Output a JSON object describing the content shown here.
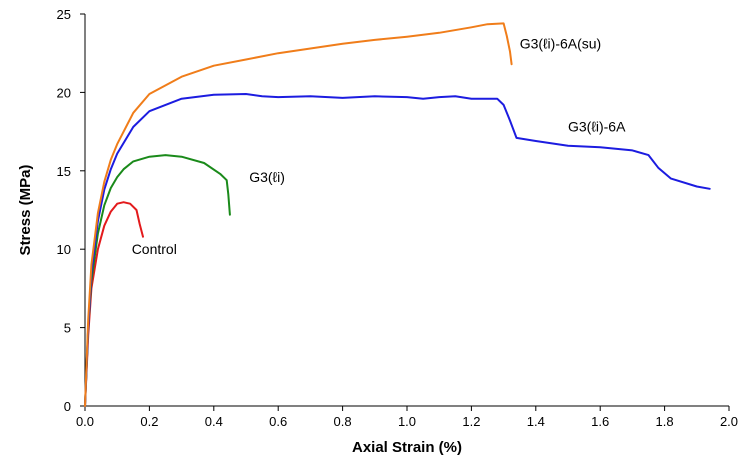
{
  "chart_data": {
    "type": "line",
    "title": "",
    "xlabel": "Axial Strain (%)",
    "ylabel": "Stress (MPa)",
    "xlim": [
      0,
      2.0
    ],
    "ylim": [
      0,
      25
    ],
    "x_ticks": [
      0,
      0.2,
      0.4,
      0.6,
      0.8,
      1.0,
      1.2,
      1.4,
      1.6,
      1.8,
      2.0
    ],
    "x_tick_labels": [
      "0.0",
      "0.2",
      "0.4",
      "0.6",
      "0.8",
      "1.0",
      "1.2",
      "1.4",
      "1.6",
      "1.8",
      "2.0"
    ],
    "y_ticks": [
      0,
      5,
      10,
      15,
      20,
      25
    ],
    "y_tick_labels": [
      "0",
      "5",
      "10",
      "15",
      "20",
      "25"
    ],
    "grid": false,
    "legend": "none",
    "series": [
      {
        "name": "Control",
        "color": "#e31a1c",
        "x": [
          0.0,
          0.01,
          0.02,
          0.04,
          0.06,
          0.08,
          0.1,
          0.12,
          0.14,
          0.16,
          0.17,
          0.18
        ],
        "y": [
          0.0,
          4.5,
          7.5,
          10.0,
          11.5,
          12.4,
          12.9,
          13.0,
          12.9,
          12.5,
          11.6,
          10.8
        ]
      },
      {
        "name": "G3(ℓi)",
        "color": "#1a8a1a",
        "x": [
          0.0,
          0.01,
          0.02,
          0.04,
          0.06,
          0.08,
          0.1,
          0.12,
          0.15,
          0.2,
          0.25,
          0.3,
          0.37,
          0.42,
          0.44,
          0.445,
          0.45
        ],
        "y": [
          0.0,
          5.0,
          8.0,
          11.0,
          12.8,
          13.9,
          14.6,
          15.1,
          15.6,
          15.9,
          16.0,
          15.9,
          15.5,
          14.8,
          14.4,
          13.5,
          12.2
        ]
      },
      {
        "name": "G3(ℓi)-6A",
        "color": "#1c1ce0",
        "x": [
          0.0,
          0.01,
          0.02,
          0.04,
          0.06,
          0.08,
          0.1,
          0.15,
          0.2,
          0.3,
          0.4,
          0.5,
          0.55,
          0.6,
          0.7,
          0.8,
          0.9,
          1.0,
          1.05,
          1.1,
          1.15,
          1.2,
          1.28,
          1.3,
          1.32,
          1.34,
          1.4,
          1.5,
          1.6,
          1.7,
          1.75,
          1.78,
          1.82,
          1.9,
          1.94
        ],
        "y": [
          0.0,
          5.0,
          8.5,
          11.8,
          13.8,
          15.1,
          16.1,
          17.8,
          18.8,
          19.6,
          19.85,
          19.9,
          19.75,
          19.7,
          19.75,
          19.65,
          19.75,
          19.7,
          19.6,
          19.7,
          19.75,
          19.6,
          19.6,
          19.2,
          18.2,
          17.1,
          16.9,
          16.6,
          16.5,
          16.3,
          16.0,
          15.2,
          14.5,
          14.0,
          13.85
        ]
      },
      {
        "name": "G3(ℓi)-6A(su)",
        "color": "#f07d1a",
        "x": [
          0.0,
          0.01,
          0.02,
          0.04,
          0.06,
          0.08,
          0.1,
          0.15,
          0.2,
          0.3,
          0.4,
          0.5,
          0.6,
          0.7,
          0.8,
          0.9,
          1.0,
          1.1,
          1.2,
          1.25,
          1.3,
          1.31,
          1.32,
          1.325
        ],
        "y": [
          0.0,
          5.5,
          9.0,
          12.3,
          14.3,
          15.7,
          16.7,
          18.7,
          19.9,
          21.0,
          21.7,
          22.1,
          22.5,
          22.8,
          23.1,
          23.35,
          23.55,
          23.8,
          24.15,
          24.35,
          24.4,
          23.6,
          22.6,
          21.8
        ]
      }
    ],
    "annotations": [
      {
        "text": "Control",
        "x": 0.145,
        "y": 9.7
      },
      {
        "text": "G3(ℓi)",
        "x": 0.51,
        "y": 14.3
      },
      {
        "text": "G3(ℓi)-6A",
        "x": 1.5,
        "y": 17.5
      },
      {
        "text": "G3(ℓi)-6A(su)",
        "x": 1.35,
        "y": 22.8
      }
    ]
  }
}
